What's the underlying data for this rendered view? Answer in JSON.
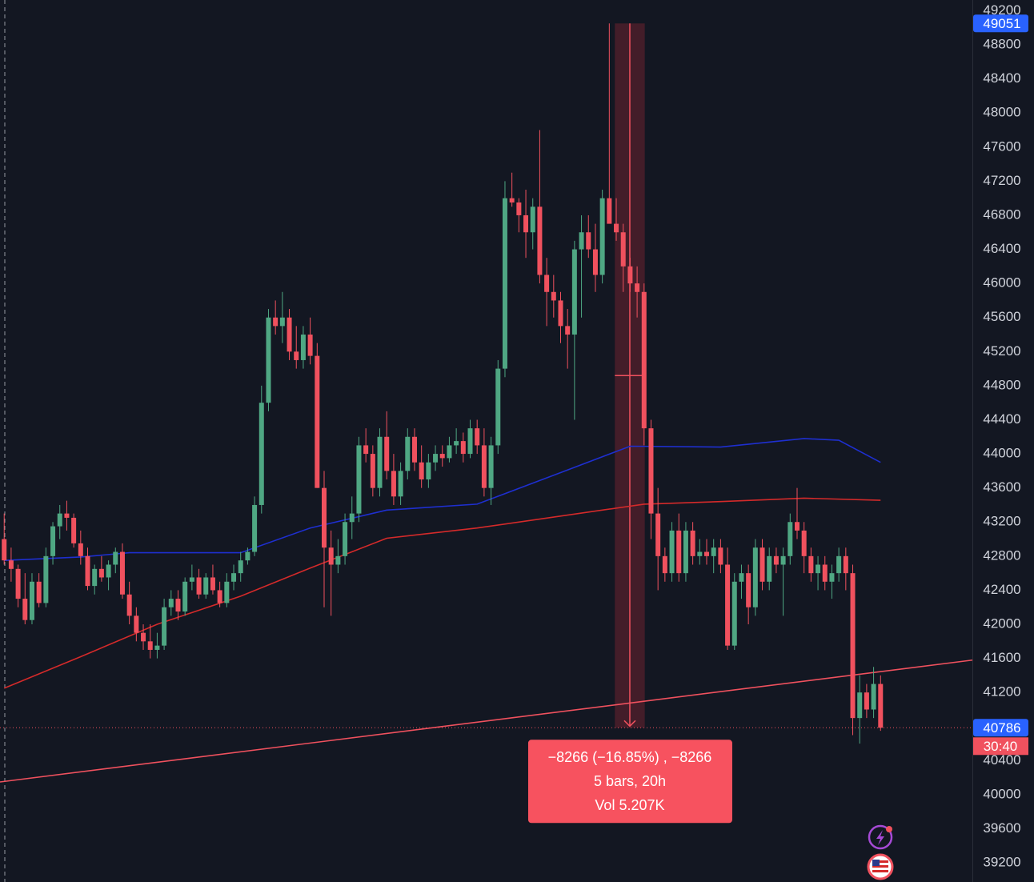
{
  "chart_data": {
    "type": "candlestick",
    "up_color": "#4fa783",
    "down_color": "#f0515e",
    "xlim": [
      -0.6,
      139.2
    ],
    "ylim": [
      38976,
      49326
    ],
    "yticks": [
      39200,
      39600,
      40000,
      40400,
      41200,
      41600,
      42000,
      42400,
      42800,
      43200,
      43600,
      44000,
      44400,
      44800,
      45200,
      45600,
      46000,
      46400,
      46800,
      47200,
      47600,
      48000,
      48400,
      48800,
      49200
    ],
    "ohlc": [
      [
        43000,
        43300,
        42700,
        42750
      ],
      [
        42750,
        42900,
        42500,
        42650
      ],
      [
        42650,
        42700,
        42200,
        42300
      ],
      [
        42300,
        42600,
        42000,
        42050
      ],
      [
        42050,
        42600,
        42000,
        42500
      ],
      [
        42500,
        42600,
        42200,
        42250
      ],
      [
        42250,
        42900,
        42200,
        42800
      ],
      [
        42800,
        43200,
        42700,
        43150
      ],
      [
        43150,
        43400,
        43000,
        43300
      ],
      [
        43300,
        43450,
        43100,
        43250
      ],
      [
        43250,
        43300,
        42900,
        42950
      ],
      [
        42950,
        43100,
        42700,
        42800
      ],
      [
        42800,
        42900,
        42400,
        42450
      ],
      [
        42450,
        42700,
        42350,
        42650
      ],
      [
        42650,
        42800,
        42500,
        42550
      ],
      [
        42550,
        42750,
        42400,
        42700
      ],
      [
        42700,
        42900,
        42600,
        42850
      ],
      [
        42850,
        42950,
        42300,
        42350
      ],
      [
        42350,
        42500,
        42000,
        42100
      ],
      [
        42100,
        42200,
        41800,
        41900
      ],
      [
        41900,
        42000,
        41700,
        41800
      ],
      [
        41800,
        42000,
        41600,
        41700
      ],
      [
        41700,
        41900,
        41600,
        41750
      ],
      [
        41750,
        42300,
        41700,
        42200
      ],
      [
        42200,
        42400,
        42100,
        42300
      ],
      [
        42300,
        42400,
        42050,
        42150
      ],
      [
        42150,
        42550,
        42100,
        42500
      ],
      [
        42500,
        42700,
        42400,
        42550
      ],
      [
        42550,
        42650,
        42300,
        42350
      ],
      [
        42350,
        42600,
        42300,
        42550
      ],
      [
        42550,
        42700,
        42350,
        42400
      ],
      [
        42400,
        42500,
        42200,
        42250
      ],
      [
        42250,
        42600,
        42200,
        42500
      ],
      [
        42500,
        42700,
        42400,
        42600
      ],
      [
        42600,
        42850,
        42500,
        42750
      ],
      [
        42750,
        42900,
        42700,
        42850
      ],
      [
        42850,
        43500,
        42800,
        43400
      ],
      [
        43400,
        44800,
        43300,
        44600
      ],
      [
        44600,
        45700,
        44500,
        45600
      ],
      [
        45600,
        45800,
        45400,
        45500
      ],
      [
        45500,
        45900,
        45300,
        45600
      ],
      [
        45600,
        45700,
        45100,
        45200
      ],
      [
        45200,
        45500,
        45000,
        45100
      ],
      [
        45100,
        45500,
        45000,
        45400
      ],
      [
        45400,
        45600,
        45050,
        45150
      ],
      [
        45150,
        45300,
        43600,
        43600
      ],
      [
        43600,
        43800,
        42200,
        42900
      ],
      [
        42900,
        43100,
        42100,
        42700
      ],
      [
        42700,
        43000,
        42600,
        42800
      ],
      [
        42800,
        43300,
        42700,
        43200
      ],
      [
        43200,
        43500,
        43000,
        43300
      ],
      [
        43300,
        44200,
        43200,
        44100
      ],
      [
        44100,
        44300,
        43900,
        44000
      ],
      [
        44000,
        44100,
        43500,
        43600
      ],
      [
        43600,
        44300,
        43500,
        44200
      ],
      [
        44200,
        44500,
        43700,
        43800
      ],
      [
        43800,
        44000,
        43400,
        43500
      ],
      [
        43500,
        43900,
        43400,
        43800
      ],
      [
        43800,
        44300,
        43700,
        44200
      ],
      [
        44200,
        44300,
        43800,
        43900
      ],
      [
        43900,
        44100,
        43600,
        43700
      ],
      [
        43700,
        44000,
        43600,
        43900
      ],
      [
        43900,
        44100,
        43800,
        44000
      ],
      [
        44000,
        44100,
        43850,
        43950
      ],
      [
        43950,
        44200,
        43900,
        44100
      ],
      [
        44100,
        44300,
        44000,
        44150
      ],
      [
        44150,
        44250,
        43900,
        44000
      ],
      [
        44000,
        44400,
        43950,
        44300
      ],
      [
        44300,
        44400,
        44000,
        44100
      ],
      [
        44100,
        44300,
        43500,
        43600
      ],
      [
        43600,
        44200,
        43400,
        44100
      ],
      [
        44100,
        45100,
        44000,
        45000
      ],
      [
        45000,
        47200,
        44900,
        47000
      ],
      [
        47000,
        47300,
        46900,
        46950
      ],
      [
        46950,
        47000,
        46600,
        46800
      ],
      [
        46800,
        47100,
        46300,
        46600
      ],
      [
        46600,
        47000,
        46400,
        46900
      ],
      [
        46900,
        47800,
        46000,
        46100
      ],
      [
        46100,
        46300,
        45500,
        45900
      ],
      [
        45900,
        46100,
        45600,
        45800
      ],
      [
        45800,
        45900,
        45300,
        45500
      ],
      [
        45500,
        45700,
        45000,
        45400
      ],
      [
        45400,
        46500,
        44400,
        46400
      ],
      [
        46400,
        46800,
        45600,
        46600
      ],
      [
        46600,
        46800,
        46300,
        46400
      ],
      [
        46400,
        46700,
        45900,
        46100
      ],
      [
        46100,
        47100,
        46000,
        47000
      ],
      [
        47000,
        49051,
        46800,
        46700
      ],
      [
        46700,
        47000,
        46500,
        46600
      ],
      [
        46600,
        46700,
        45900,
        46200
      ],
      [
        46200,
        46300,
        45900,
        46000
      ],
      [
        46000,
        46200,
        45600,
        45900
      ],
      [
        45900,
        46000,
        44100,
        44300
      ],
      [
        44300,
        44400,
        43000,
        43300
      ],
      [
        43300,
        43600,
        42400,
        42800
      ],
      [
        42800,
        42900,
        42500,
        42600
      ],
      [
        42600,
        43200,
        42500,
        43100
      ],
      [
        43100,
        43300,
        42500,
        42600
      ],
      [
        42600,
        43200,
        42500,
        43100
      ],
      [
        43100,
        43200,
        42700,
        42800
      ],
      [
        42800,
        43000,
        42700,
        42850
      ],
      [
        42850,
        43000,
        42700,
        42800
      ],
      [
        42800,
        43000,
        42600,
        42900
      ],
      [
        42900,
        43000,
        42600,
        42700
      ],
      [
        42700,
        42900,
        41700,
        41750
      ],
      [
        41750,
        42600,
        41700,
        42500
      ],
      [
        42500,
        42700,
        42300,
        42600
      ],
      [
        42600,
        42700,
        42000,
        42200
      ],
      [
        42200,
        43000,
        42100,
        42900
      ],
      [
        42900,
        43000,
        42400,
        42500
      ],
      [
        42500,
        42900,
        42400,
        42800
      ],
      [
        42800,
        42900,
        42600,
        42700
      ],
      [
        42700,
        42900,
        42100,
        42800
      ],
      [
        42800,
        43300,
        42700,
        43200
      ],
      [
        43200,
        43600,
        43000,
        43100
      ],
      [
        43100,
        43200,
        42600,
        42800
      ],
      [
        42800,
        42900,
        42500,
        42600
      ],
      [
        42600,
        42800,
        42400,
        42700
      ],
      [
        42700,
        42800,
        42400,
        42500
      ],
      [
        42500,
        42700,
        42300,
        42600
      ],
      [
        42600,
        42900,
        42500,
        42800
      ],
      [
        42800,
        42900,
        42400,
        42600
      ],
      [
        42600,
        42700,
        40700,
        40900
      ],
      [
        40900,
        41400,
        40600,
        41200
      ],
      [
        41200,
        41300,
        40900,
        41000
      ],
      [
        41000,
        41500,
        40900,
        41300
      ],
      [
        41300,
        41400,
        40750,
        40786
      ]
    ],
    "lines": [
      {
        "color": "#1e2fd0",
        "x": [
          0,
          11,
          18,
          34,
          44,
          55,
          68,
          80,
          90,
          103,
          115,
          120,
          126
        ],
        "values": [
          42750,
          42790,
          42840,
          42840,
          43130,
          43340,
          43410,
          43780,
          44090,
          44080,
          44180,
          44160,
          43900
        ]
      },
      {
        "color": "#d42a2a",
        "x": [
          0,
          11,
          22,
          34,
          44,
          55,
          68,
          80,
          92,
          103,
          115,
          126
        ],
        "values": [
          41250,
          41620,
          42000,
          42330,
          42660,
          43010,
          43130,
          43270,
          43410,
          43440,
          43480,
          43455
        ]
      },
      {
        "color": "#f0515e",
        "x": [
          -0.6,
          139.2
        ],
        "values": [
          40150,
          41580
        ]
      }
    ],
    "price_labels": [
      {
        "value": 49051,
        "color": "#2962ff"
      },
      {
        "value": 40786,
        "color": "#2962ff"
      }
    ],
    "countdown": "30:40",
    "measure": {
      "x": [
        87.8,
        92.1
      ],
      "lines": [
        "−8266 (−16.85%) , −8266",
        "5 bars, 20h",
        "Vol 5.207K"
      ]
    }
  }
}
